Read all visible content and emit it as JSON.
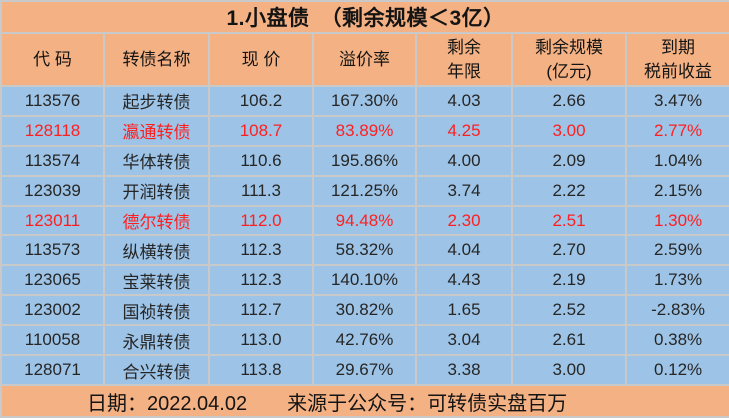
{
  "title": "1.小盘债　（剩余规模＜3亿）",
  "colors": {
    "orange": "#f4b183",
    "blue": "#9dc3e6",
    "grid": "#c9c9c9",
    "ink": "#262626",
    "red": "#ff1f1f"
  },
  "table": {
    "headers": [
      "代 码",
      "转债名称",
      "现 价",
      "溢价率",
      "剩余\n年限",
      "剩余规模\n(亿元)",
      "到期\n税前收益"
    ],
    "column_keys": [
      "code",
      "name",
      "price",
      "premium",
      "years",
      "scale",
      "yield"
    ]
  },
  "rows": [
    {
      "code": "113576",
      "name": "起步转债",
      "price": "106.2",
      "premium": "167.30%",
      "years": "4.03",
      "scale": "2.66",
      "yield": "3.47%",
      "highlight": false
    },
    {
      "code": "128118",
      "name": "瀛通转债",
      "price": "108.7",
      "premium": "83.89%",
      "years": "4.25",
      "scale": "3.00",
      "yield": "2.77%",
      "highlight": true
    },
    {
      "code": "113574",
      "name": "华体转债",
      "price": "110.6",
      "premium": "195.86%",
      "years": "4.00",
      "scale": "2.09",
      "yield": "1.04%",
      "highlight": false
    },
    {
      "code": "123039",
      "name": "开润转债",
      "price": "111.3",
      "premium": "121.25%",
      "years": "3.74",
      "scale": "2.22",
      "yield": "2.15%",
      "highlight": false
    },
    {
      "code": "123011",
      "name": "德尔转债",
      "price": "112.0",
      "premium": "94.48%",
      "years": "2.30",
      "scale": "2.51",
      "yield": "1.30%",
      "highlight": true
    },
    {
      "code": "113573",
      "name": "纵横转债",
      "price": "112.3",
      "premium": "58.32%",
      "years": "4.04",
      "scale": "2.70",
      "yield": "2.59%",
      "highlight": false
    },
    {
      "code": "123065",
      "name": "宝莱转债",
      "price": "112.3",
      "premium": "140.10%",
      "years": "4.43",
      "scale": "2.19",
      "yield": "1.73%",
      "highlight": false
    },
    {
      "code": "123002",
      "name": "国祯转债",
      "price": "112.7",
      "premium": "30.82%",
      "years": "1.65",
      "scale": "2.52",
      "yield": "-2.83%",
      "highlight": false
    },
    {
      "code": "110058",
      "name": "永鼎转债",
      "price": "113.0",
      "premium": "42.76%",
      "years": "3.04",
      "scale": "2.61",
      "yield": "0.38%",
      "highlight": false
    },
    {
      "code": "128071",
      "name": "合兴转债",
      "price": "113.8",
      "premium": "29.67%",
      "years": "3.38",
      "scale": "3.00",
      "yield": "0.12%",
      "highlight": false
    }
  ],
  "footer": {
    "date": "日期：2022.04.02",
    "source": "来源于公众号：可转债实盘百万"
  },
  "chart_data": {
    "type": "table",
    "title": "1.小盘债　（剩余规模＜3亿）",
    "columns": [
      "代码",
      "转债名称",
      "现价",
      "溢价率",
      "剩余年限",
      "剩余规模(亿元)",
      "到期税前收益"
    ],
    "rows": [
      [
        "113576",
        "起步转债",
        106.2,
        "167.30%",
        4.03,
        2.66,
        "3.47%"
      ],
      [
        "128118",
        "瀛通转债",
        108.7,
        "83.89%",
        4.25,
        3.0,
        "2.77%"
      ],
      [
        "113574",
        "华体转债",
        110.6,
        "195.86%",
        4.0,
        2.09,
        "1.04%"
      ],
      [
        "123039",
        "开润转债",
        111.3,
        "121.25%",
        3.74,
        2.22,
        "2.15%"
      ],
      [
        "123011",
        "德尔转债",
        112.0,
        "94.48%",
        2.3,
        2.51,
        "1.30%"
      ],
      [
        "113573",
        "纵横转债",
        112.3,
        "58.32%",
        4.04,
        2.7,
        "2.59%"
      ],
      [
        "123065",
        "宝莱转债",
        112.3,
        "140.10%",
        4.43,
        2.19,
        "1.73%"
      ],
      [
        "123002",
        "国祯转债",
        112.7,
        "30.82%",
        1.65,
        2.52,
        "-2.83%"
      ],
      [
        "110058",
        "永鼎转债",
        113.0,
        "42.76%",
        3.04,
        2.61,
        "0.38%"
      ],
      [
        "128071",
        "合兴转债",
        113.8,
        "29.67%",
        3.38,
        3.0,
        "0.12%"
      ]
    ],
    "highlighted_row_indexes": [
      1,
      4
    ],
    "highlight_color": "#ff1f1f",
    "footer": "日期：2022.04.02　来源于公众号：可转债实盘百万"
  }
}
